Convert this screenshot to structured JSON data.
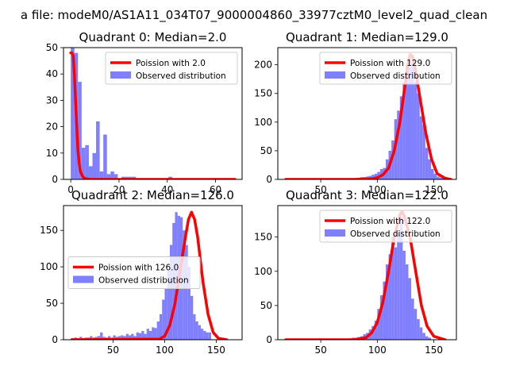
{
  "figure": {
    "suptitle": "a file: modeM0/AS1A11_034T07_9000004860_33977cztM0_level2_quad_clean"
  },
  "colors": {
    "fit": "#ff0000",
    "hist": "#7f7fff",
    "axis": "#000000"
  },
  "chart_data": [
    {
      "type": "histogram+line",
      "title": "Quadrant 0: Median=2.0",
      "xlim": [
        -3,
        71
      ],
      "ylim": [
        0,
        50
      ],
      "xticks": [
        0,
        20,
        40,
        60
      ],
      "yticks": [
        0,
        10,
        20,
        30,
        40,
        50
      ],
      "legend": {
        "position": "top-right",
        "fit_label": "Poission with 2.0",
        "hist_label": "Observed distribution"
      },
      "bins": {
        "start": 0,
        "width": 1.5
      },
      "counts": [
        50,
        48,
        37,
        12,
        13,
        5,
        10,
        22,
        3,
        17,
        2,
        3,
        2,
        0,
        1,
        1,
        1,
        1,
        0,
        0,
        0,
        0,
        0,
        0,
        0,
        0,
        0,
        1,
        0,
        0,
        0,
        0,
        0,
        0,
        0,
        0,
        0,
        0,
        0,
        0,
        0,
        0,
        0,
        0,
        0,
        0,
        0
      ],
      "fit": {
        "x": [
          0,
          0.5,
          1,
          1.5,
          2,
          2.5,
          3,
          3.5,
          4,
          5,
          6,
          8,
          10,
          20,
          40,
          68
        ],
        "y": [
          48,
          48,
          47,
          40,
          30,
          20,
          11,
          6,
          3,
          1,
          0.3,
          0,
          0,
          0,
          0,
          0
        ]
      }
    },
    {
      "type": "histogram+line",
      "title": "Quadrant 1: Median=129.0",
      "xlim": [
        12,
        170
      ],
      "ylim": [
        0,
        230
      ],
      "xticks": [
        50,
        100,
        150
      ],
      "yticks": [
        0,
        50,
        100,
        150,
        200
      ],
      "legend": {
        "position": "top-right",
        "fit_label": "Poission with 129.0",
        "hist_label": "Observed distribution"
      },
      "bins": {
        "start": 80,
        "width": 2.5
      },
      "counts": [
        2,
        3,
        4,
        4,
        5,
        6,
        8,
        10,
        13,
        18,
        20,
        35,
        50,
        68,
        105,
        120,
        145,
        170,
        200,
        195,
        205,
        170,
        150,
        110,
        95,
        55,
        35,
        18,
        10,
        5,
        3,
        2
      ],
      "fit": {
        "x": [
          19,
          80,
          95,
          100,
          105,
          110,
          115,
          120,
          125,
          127,
          129,
          131,
          133,
          138,
          143,
          148,
          153,
          160,
          165
        ],
        "y": [
          0,
          0,
          1,
          3,
          8,
          20,
          50,
          100,
          170,
          200,
          218,
          215,
          200,
          140,
          80,
          35,
          10,
          2,
          0
        ]
      }
    },
    {
      "type": "histogram+line",
      "title": "Quadrant 2: Median=126.0",
      "xlim": [
        2,
        175
      ],
      "ylim": [
        0,
        184
      ],
      "xticks": [
        50,
        100,
        150
      ],
      "yticks": [
        0,
        50,
        100,
        150
      ],
      "legend": {
        "position": "center-left",
        "fit_label": "Poission with 126.0",
        "hist_label": "Observed distribution"
      },
      "bins": {
        "start": 10,
        "width": 2.5
      },
      "counts": [
        2,
        3,
        2,
        4,
        2,
        3,
        3,
        5,
        3,
        4,
        5,
        10,
        4,
        3,
        5,
        3,
        6,
        4,
        5,
        6,
        5,
        8,
        6,
        8,
        5,
        10,
        9,
        12,
        8,
        15,
        12,
        17,
        16,
        25,
        35,
        55,
        70,
        95,
        130,
        160,
        175,
        170,
        168,
        150,
        130,
        100,
        60,
        35,
        25,
        20,
        15,
        12,
        10,
        10
      ],
      "fit": {
        "x": [
          10,
          95,
          100,
          105,
          110,
          115,
          120,
          123,
          126,
          129,
          132,
          137,
          142,
          147,
          152,
          160
        ],
        "y": [
          0,
          1,
          5,
          20,
          50,
          95,
          140,
          165,
          175,
          165,
          140,
          80,
          35,
          10,
          2,
          0
        ]
      }
    },
    {
      "type": "histogram+line",
      "title": "Quadrant 3: Median=122.0",
      "xlim": [
        12,
        170
      ],
      "ylim": [
        0,
        196
      ],
      "xticks": [
        50,
        100,
        150
      ],
      "yticks": [
        0,
        50,
        100,
        150
      ],
      "legend": {
        "position": "top-right",
        "fit_label": "Poission with 122.0",
        "hist_label": "Observed distribution"
      },
      "bins": {
        "start": 75,
        "width": 2.5
      },
      "counts": [
        2,
        3,
        3,
        4,
        5,
        8,
        10,
        15,
        20,
        28,
        45,
        65,
        85,
        110,
        125,
        150,
        135,
        155,
        180,
        130,
        110,
        90,
        60,
        45,
        30,
        18,
        10,
        5,
        3
      ],
      "fit": {
        "x": [
          19,
          80,
          90,
          95,
          100,
          105,
          110,
          115,
          120,
          122,
          124,
          129,
          134,
          139,
          144,
          150,
          160
        ],
        "y": [
          0,
          0,
          3,
          10,
          25,
          55,
          100,
          150,
          183,
          187,
          180,
          150,
          100,
          50,
          20,
          5,
          0
        ]
      }
    }
  ]
}
